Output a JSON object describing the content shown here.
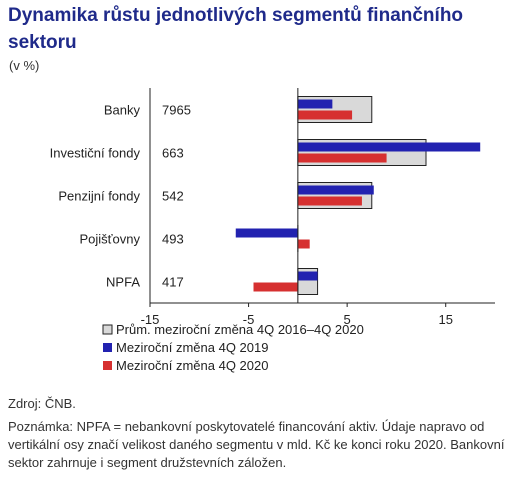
{
  "title": "Dynamika růstu jednotlivých segmentů finančního sektoru",
  "unit_label": "(v %)",
  "source": "Zdroj: ČNB.",
  "note": "Poznámka: NPFA = nebankovní poskytovatelé financování aktiv. Údaje napravo od vertikální osy značí velikost daného segmentu v mld. Kč ke konci roku 2020. Bankovní sektor zahrnuje i segment družstevních záložen.",
  "chart_data": {
    "type": "bar",
    "orientation": "horizontal",
    "title": "Dynamika růstu jednotlivých segmentů finančního sektoru",
    "categories": [
      "Banky",
      "Investiční fondy",
      "Penzijní fondy",
      "Pojišťovny",
      "NPFA"
    ],
    "segment_sizes": [
      "7965",
      "663",
      "542",
      "493",
      "417"
    ],
    "xlim": [
      -15,
      20
    ],
    "x_ticks": [
      -15,
      -5,
      5,
      15
    ],
    "series": [
      {
        "name": "Prům. meziroční změna 4Q 2016–4Q 2020",
        "values": [
          7.5,
          13,
          7.5,
          0,
          2
        ],
        "color": "#d9d9d9",
        "outline": "#222222"
      },
      {
        "name": "Meziroční změna 4Q 2019",
        "values": [
          3.5,
          18.5,
          7.7,
          -6.3,
          2
        ],
        "color": "#2222b0"
      },
      {
        "name": "Meziroční změna 4Q 2020",
        "values": [
          5.5,
          9,
          6.5,
          1.2,
          -4.5
        ],
        "color": "#d63030"
      }
    ],
    "legend_position": "bottom"
  }
}
